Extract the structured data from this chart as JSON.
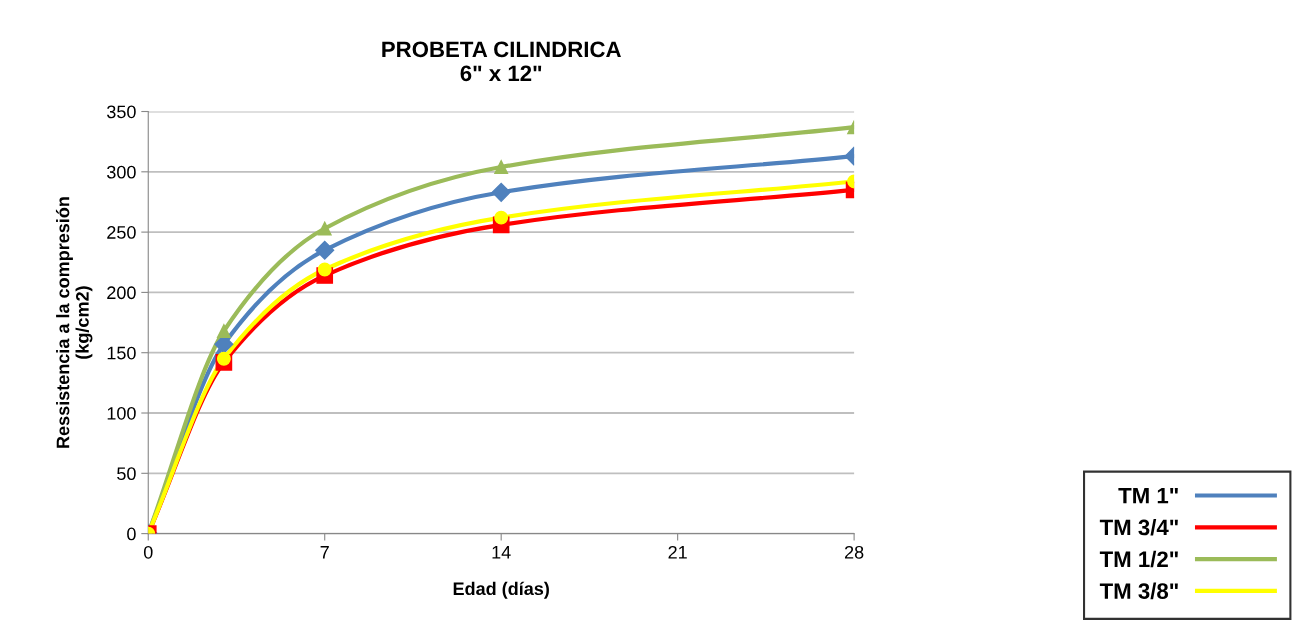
{
  "chart_data": {
    "type": "line",
    "title": "PROBETA CILINDRICA\n6\" x 12\"",
    "xlabel": "Edad (días)",
    "ylabel": "Ressistencia a la compresión\n(kg/cm2)",
    "x": [
      0,
      3,
      7,
      14,
      28
    ],
    "series": [
      {
        "name": "TM 1\"",
        "color": "#4f81bd",
        "marker": "diamond",
        "values": [
          0,
          157,
          235,
          283,
          313
        ]
      },
      {
        "name": "TM 3/4\"",
        "color": "#ff0000",
        "marker": "square",
        "values": [
          0,
          142,
          214,
          256,
          285
        ]
      },
      {
        "name": "TM 1/2\"",
        "color": "#9bbb59",
        "marker": "triangle",
        "values": [
          0,
          168,
          253,
          304,
          337
        ]
      },
      {
        "name": "TM 3/8\"",
        "color": "#ffff00",
        "marker": "circle",
        "values": [
          0,
          145,
          219,
          262,
          292
        ]
      }
    ],
    "xlim": [
      0,
      28
    ],
    "xticks": [
      0,
      7,
      14,
      21,
      28
    ],
    "ylim": [
      0,
      350
    ],
    "yticks": [
      0,
      50,
      100,
      150,
      200,
      250,
      300,
      350
    ],
    "grid": "y",
    "legend": "bottom right",
    "line_style": "solid"
  }
}
